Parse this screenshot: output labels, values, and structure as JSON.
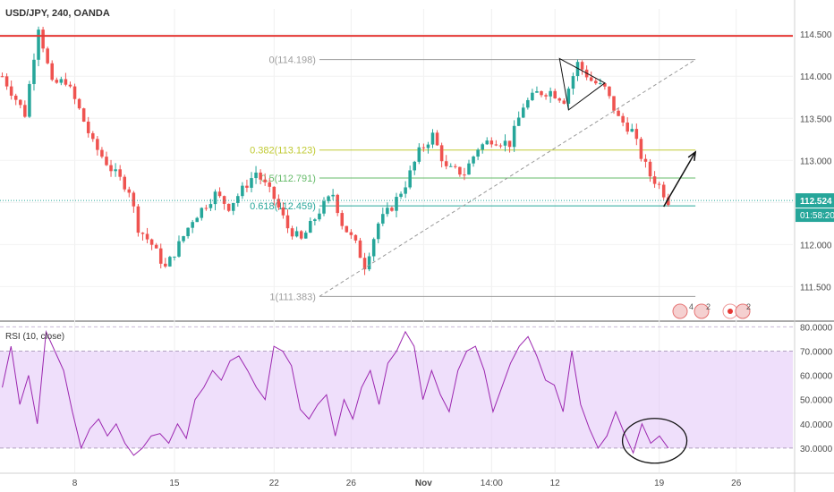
{
  "symbol_title": "USD/JPY, 240, OANDA",
  "colors": {
    "up": "#26a69a",
    "down": "#ef5350",
    "resistance": "#e53935",
    "fib_neutral": "#9e9e9e",
    "fib_0382": "#c0ca33",
    "fib_05": "#66bb6a",
    "fib_0618": "#26a69a",
    "rsi_line": "#9c27b0",
    "rsi_band": "#e1c4f7",
    "price_badge": "#26a69a"
  },
  "chart_data": [
    {
      "type": "candlestick",
      "title": "USD/JPY, 240, OANDA",
      "ylim": [
        111.1,
        114.8
      ],
      "yticks": [
        "114.500",
        "114.000",
        "113.500",
        "113.000",
        "112.500",
        "112.000",
        "111.500"
      ],
      "yticks_values": [
        114.5,
        114.0,
        113.5,
        113.0,
        112.5,
        112.0,
        111.5
      ],
      "xticks": [
        "8",
        "15",
        "22",
        "26",
        "Nov",
        "14:00",
        "12",
        "19",
        "26"
      ],
      "xticks_bars": [
        16,
        38,
        60,
        77,
        93,
        108,
        122,
        145,
        162
      ],
      "bar_count": 175,
      "resistance_level": 114.48,
      "current_price": "112.524",
      "current_price_value": 112.524,
      "countdown": "01:58:20",
      "fib_levels": [
        {
          "label": "0(114.198)",
          "value": 114.198,
          "role": "fib_neutral"
        },
        {
          "label": "0.382(113.123)",
          "value": 113.123,
          "role": "fib_0382"
        },
        {
          "label": "0.5(112.791)",
          "value": 112.791,
          "role": "fib_05"
        },
        {
          "label": "0.618(112.459)",
          "value": 112.459,
          "role": "fib_0618"
        },
        {
          "label": "1(111.383)",
          "value": 111.383,
          "role": "fib_neutral"
        }
      ],
      "fib_start_bar": 70,
      "fib_end_bar": 153,
      "trendline": {
        "x": [
          70,
          153
        ],
        "y": [
          111.383,
          114.198
        ]
      },
      "triangle": [
        [
          123,
          114.21
        ],
        [
          133,
          113.92
        ],
        [
          125,
          113.6
        ]
      ],
      "arrow": {
        "x": [
          146,
          153
        ],
        "y": [
          112.45,
          113.1
        ]
      },
      "series": [
        {
          "x": [
            0,
            5,
            8,
            11,
            14,
            17,
            20,
            24,
            28,
            30,
            33,
            36,
            39,
            42,
            47,
            50,
            53,
            56,
            60,
            63,
            66,
            70,
            73,
            75,
            78,
            80,
            83,
            86,
            89,
            92,
            95,
            98,
            102,
            105,
            108,
            112,
            115,
            118,
            121,
            124,
            127,
            130,
            133,
            136,
            139,
            141,
            143,
            145,
            147
          ],
          "y": [
            114.0,
            113.55,
            114.6,
            113.9,
            113.95,
            113.6,
            113.2,
            112.9,
            112.65,
            112.2,
            112.0,
            111.72,
            112.0,
            112.3,
            112.6,
            112.45,
            112.65,
            112.86,
            112.55,
            112.2,
            112.05,
            112.4,
            112.6,
            112.25,
            112.0,
            111.75,
            112.25,
            112.45,
            112.72,
            113.1,
            113.3,
            112.9,
            112.85,
            113.15,
            113.25,
            113.2,
            113.65,
            113.8,
            113.82,
            113.72,
            114.15,
            113.95,
            113.85,
            113.5,
            113.35,
            113.05,
            112.82,
            112.7,
            112.52
          ]
        }
      ]
    },
    {
      "type": "line",
      "title": "RSI (10, close)",
      "ylim": [
        20,
        82
      ],
      "yticks": [
        "80.0000",
        "70.0000",
        "60.0000",
        "50.0000",
        "40.0000",
        "30.0000"
      ],
      "yticks_values": [
        80,
        70,
        60,
        50,
        40,
        30
      ],
      "band": [
        30,
        70
      ],
      "series": [
        {
          "name": "RSI",
          "x": [
            0,
            2,
            4,
            6,
            8,
            10,
            12,
            14,
            16,
            18,
            20,
            22,
            24,
            26,
            28,
            30,
            32,
            34,
            36,
            38,
            40,
            42,
            44,
            46,
            48,
            50,
            52,
            54,
            56,
            58,
            60,
            62,
            64,
            66,
            68,
            70,
            72,
            74,
            76,
            78,
            80,
            82,
            84,
            86,
            88,
            90,
            92,
            94,
            96,
            98,
            100,
            102,
            104,
            106,
            108,
            110,
            112,
            114,
            116,
            118,
            120,
            122,
            124,
            126,
            128,
            130,
            132,
            134,
            136,
            138,
            140,
            142,
            144,
            146,
            148,
            150,
            152
          ],
          "y": [
            55,
            72,
            48,
            60,
            40,
            78,
            70,
            62,
            45,
            30,
            38,
            42,
            35,
            40,
            32,
            27,
            30,
            35,
            36,
            32,
            40,
            34,
            50,
            55,
            62,
            58,
            66,
            68,
            62,
            55,
            50,
            72,
            70,
            64,
            46,
            42,
            48,
            52,
            35,
            50,
            42,
            55,
            62,
            48,
            65,
            70,
            78,
            72,
            50,
            62,
            52,
            45,
            62,
            70,
            72,
            62,
            45,
            55,
            65,
            72,
            76,
            68,
            58,
            56,
            45,
            70,
            48,
            38,
            30,
            35,
            45,
            36,
            28,
            40,
            32,
            35,
            30
          ]
        }
      ]
    }
  ]
}
